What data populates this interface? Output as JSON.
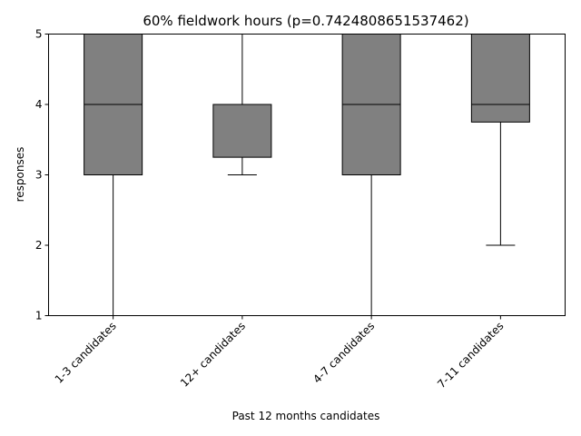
{
  "chart_data": {
    "type": "box",
    "title": "60% fieldwork hours (p=0.7424808651537462)",
    "xlabel": "Past 12 months candidates",
    "ylabel": "responses",
    "ylim": [
      1,
      5
    ],
    "yticks": [
      1,
      2,
      3,
      4,
      5
    ],
    "categories": [
      "1-3 candidates",
      "12+ candidates",
      "4-7 candidates",
      "7-11 candidates"
    ],
    "boxes": [
      {
        "category": "1-3 candidates",
        "whisker_low": 1,
        "q1": 3,
        "median": 4,
        "q3": 5,
        "whisker_high": 5
      },
      {
        "category": "12+ candidates",
        "whisker_low": 3,
        "q1": 3.25,
        "median": 4,
        "q3": 4,
        "whisker_high": 5
      },
      {
        "category": "4-7 candidates",
        "whisker_low": 1,
        "q1": 3,
        "median": 4,
        "q3": 5,
        "whisker_high": 5
      },
      {
        "category": "7-11 candidates",
        "whisker_low": 2,
        "q1": 3.75,
        "median": 4,
        "q3": 5,
        "whisker_high": 5
      }
    ],
    "box_color": "#808080",
    "line_color": "#000000",
    "grid": false,
    "legend": "none"
  }
}
